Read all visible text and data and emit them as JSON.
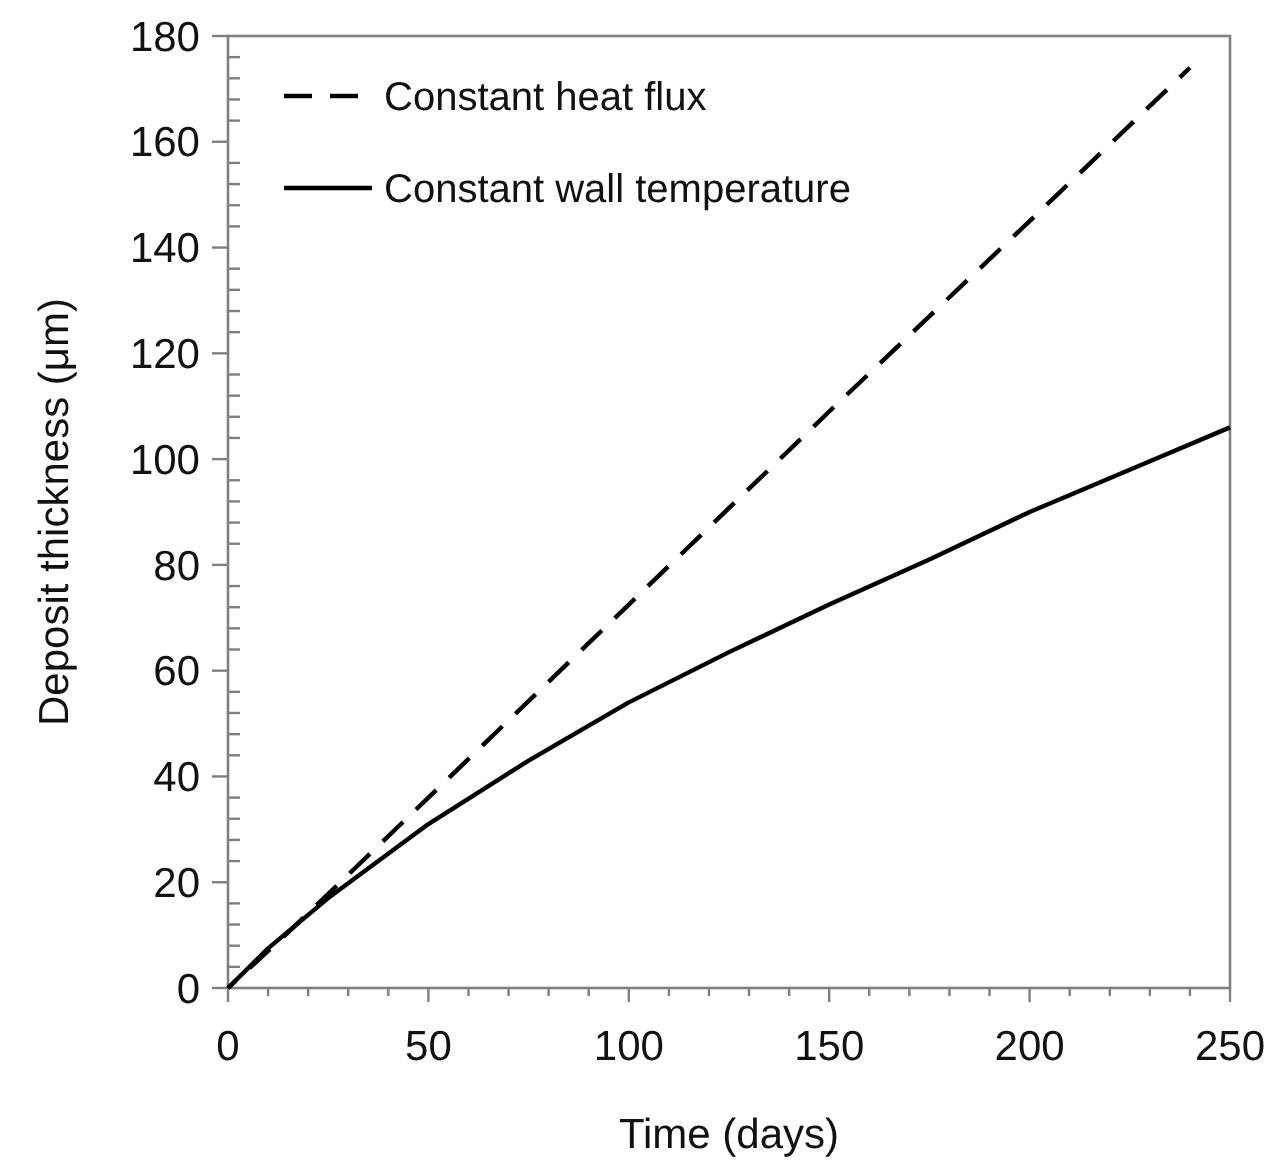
{
  "chart_data": {
    "type": "line",
    "xlabel": "Time (days)",
    "ylabel": "Deposit thickness (μm)",
    "xlim": [
      0,
      250
    ],
    "ylim": [
      0,
      180
    ],
    "xticks": [
      0,
      {
        "value": 10,
        "label": null
      },
      {
        "value": 20,
        "label": null
      },
      {
        "value": 30,
        "label": null
      },
      {
        "value": 40,
        "label": null
      },
      50,
      {
        "value": 60,
        "label": null
      },
      {
        "value": 70,
        "label": null
      },
      {
        "value": 80,
        "label": null
      },
      {
        "value": 90,
        "label": null
      },
      100,
      {
        "value": 110,
        "label": null
      },
      {
        "value": 120,
        "label": null
      },
      {
        "value": 130,
        "label": null
      },
      {
        "value": 140,
        "label": null
      },
      150,
      {
        "value": 160,
        "label": null
      },
      {
        "value": 170,
        "label": null
      },
      {
        "value": 180,
        "label": null
      },
      {
        "value": 190,
        "label": null
      },
      200,
      {
        "value": 210,
        "label": null
      },
      {
        "value": 220,
        "label": null
      },
      {
        "value": 230,
        "label": null
      },
      {
        "value": 240,
        "label": null
      },
      250
    ],
    "yticks": [
      0,
      {
        "value": 4,
        "label": null
      },
      {
        "value": 8,
        "label": null
      },
      {
        "value": 12,
        "label": null
      },
      {
        "value": 16,
        "label": null
      },
      20,
      {
        "value": 24,
        "label": null
      },
      {
        "value": 28,
        "label": null
      },
      {
        "value": 32,
        "label": null
      },
      {
        "value": 36,
        "label": null
      },
      40,
      {
        "value": 44,
        "label": null
      },
      {
        "value": 48,
        "label": null
      },
      {
        "value": 52,
        "label": null
      },
      {
        "value": 56,
        "label": null
      },
      60,
      {
        "value": 64,
        "label": null
      },
      {
        "value": 68,
        "label": null
      },
      {
        "value": 72,
        "label": null
      },
      {
        "value": 76,
        "label": null
      },
      80,
      {
        "value": 84,
        "label": null
      },
      {
        "value": 88,
        "label": null
      },
      {
        "value": 92,
        "label": null
      },
      {
        "value": 96,
        "label": null
      },
      100,
      {
        "value": 104,
        "label": null
      },
      {
        "value": 108,
        "label": null
      },
      {
        "value": 112,
        "label": null
      },
      {
        "value": 116,
        "label": null
      },
      120,
      {
        "value": 124,
        "label": null
      },
      {
        "value": 128,
        "label": null
      },
      {
        "value": 132,
        "label": null
      },
      {
        "value": 136,
        "label": null
      },
      140,
      {
        "value": 144,
        "label": null
      },
      {
        "value": 148,
        "label": null
      },
      {
        "value": 152,
        "label": null
      },
      {
        "value": 156,
        "label": null
      },
      160,
      {
        "value": 164,
        "label": null
      },
      {
        "value": 168,
        "label": null
      },
      {
        "value": 172,
        "label": null
      },
      {
        "value": 176,
        "label": null
      },
      180
    ],
    "grid": false,
    "legend": "top left",
    "marker": "none",
    "series": [
      {
        "name": "Constant heat flux",
        "color": "#000000",
        "line_style": "dashed",
        "x": [
          0,
          15,
          50,
          100,
          150,
          200,
          240
        ],
        "values": [
          0,
          10.5,
          36,
          72.5,
          109,
          145,
          174
        ]
      },
      {
        "name": "Constant wall temperature",
        "color": "#000000",
        "line_style": "solid",
        "x": [
          0,
          10,
          25,
          50,
          75,
          100,
          125,
          150,
          175,
          200,
          225,
          250
        ],
        "values": [
          0,
          7.5,
          17,
          31,
          43,
          54,
          63.5,
          72.5,
          81,
          90,
          98,
          106
        ]
      }
    ]
  }
}
